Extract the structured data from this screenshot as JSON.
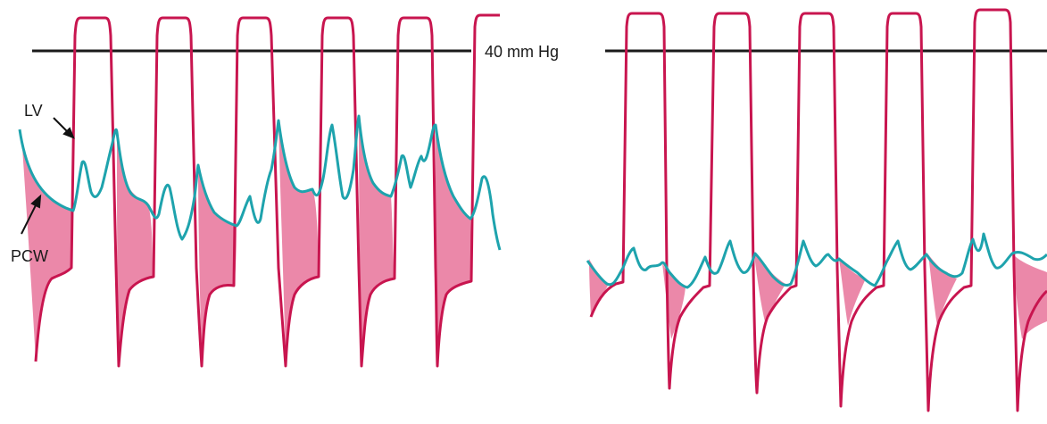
{
  "reference_line": {
    "label": "40 mm Hg"
  },
  "labels": {
    "lv": "LV",
    "pcw": "PCW"
  },
  "colors": {
    "lv_trace": "#c8154f",
    "pcw_trace": "#1ea3ad",
    "gradient_fill": "#e8739a",
    "reference_line": "#1a1a1a",
    "background": "#ffffff"
  },
  "panels": [
    {
      "id": "left",
      "description_beats": 6
    },
    {
      "id": "right",
      "description_beats": 6
    }
  ]
}
